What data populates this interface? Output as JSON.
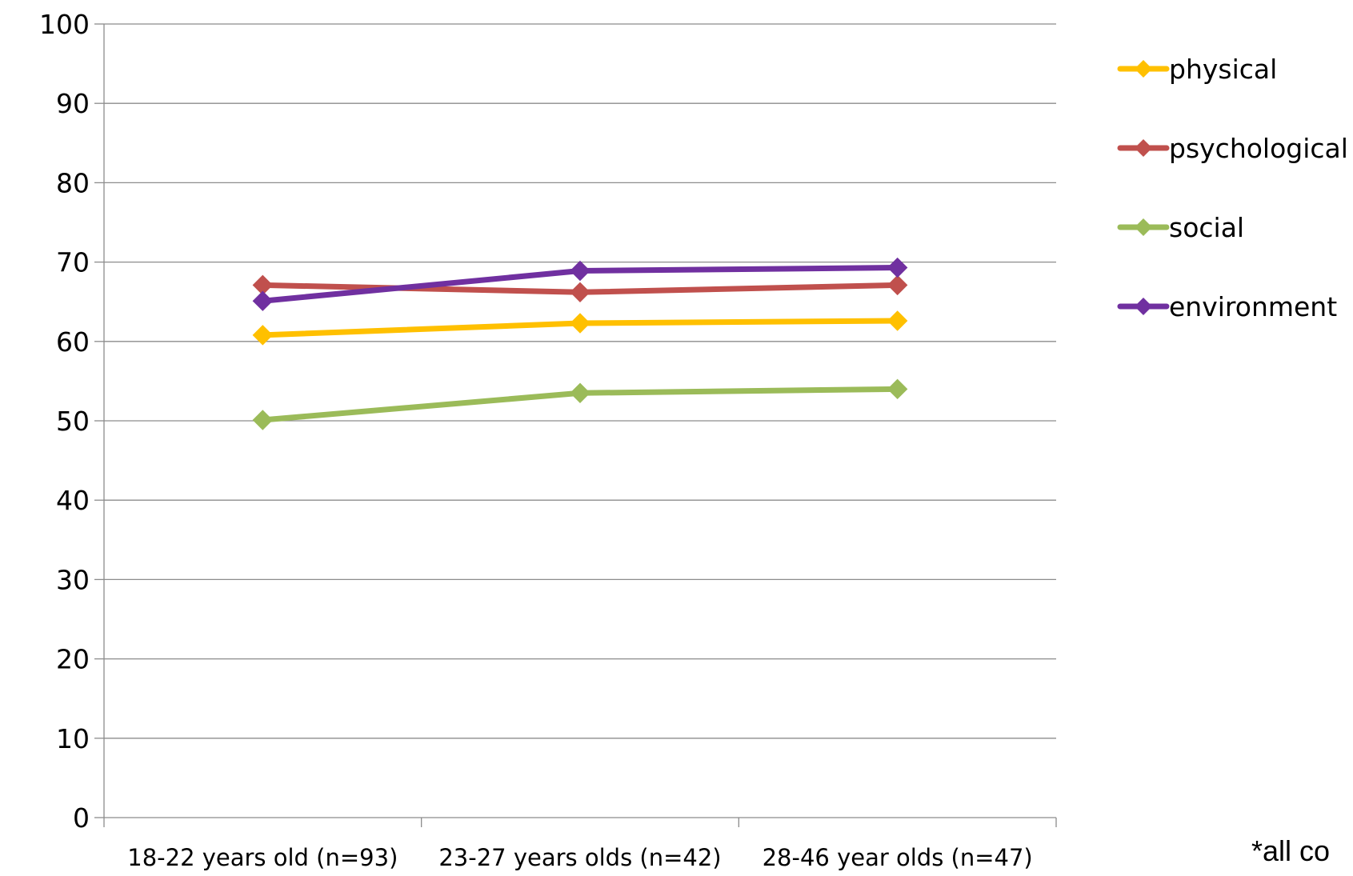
{
  "chart_data": {
    "type": "line",
    "categories": [
      "18-22 years old (n=93)",
      "23-27 years olds (n=42)",
      "28-46 year olds (n=47)"
    ],
    "series": [
      {
        "name": "physical",
        "values": [
          60.8,
          62.3,
          62.6
        ],
        "color": "#FFC000"
      },
      {
        "name": "psychological",
        "values": [
          67.1,
          66.2,
          67.1
        ],
        "color": "#C0504D"
      },
      {
        "name": "social",
        "values": [
          50.1,
          53.5,
          54.0
        ],
        "color": "#9BBB59"
      },
      {
        "name": "environment",
        "values": [
          65.1,
          68.9,
          69.3
        ],
        "color": "#7030A0"
      }
    ],
    "ylim": [
      0,
      100
    ],
    "yticks": [
      0,
      10,
      20,
      30,
      40,
      50,
      60,
      70,
      80,
      90,
      100
    ],
    "grid": true,
    "legend": "right",
    "marker": "diamond",
    "title": "",
    "xlabel": "",
    "ylabel": ""
  },
  "footnote": "*all co"
}
